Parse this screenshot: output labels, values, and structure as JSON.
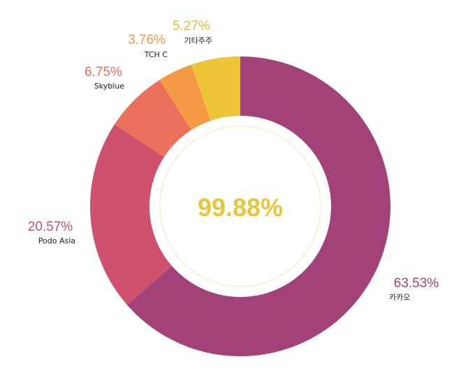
{
  "chart_data": {
    "type": "pie",
    "variant": "donut",
    "start": "top",
    "direction": "clockwise",
    "center_text": "99.88%",
    "center_color": "#e9c53a",
    "slices": [
      {
        "label": "카카오",
        "value": 63.53,
        "value_text": "63.53%",
        "color": "#a34278",
        "label_color": "#a34278"
      },
      {
        "label": "Podo Asia",
        "value": 20.57,
        "value_text": "20.57%",
        "color": "#cf516d",
        "label_color": "#cf516d"
      },
      {
        "label": "Skyblue",
        "value": 6.75,
        "value_text": "6.75%",
        "color": "#eb705c",
        "label_color": "#eb705c"
      },
      {
        "label": "TCH C",
        "value": 3.76,
        "value_text": "3.76%",
        "color": "#f49a44",
        "label_color": "#f49a44"
      },
      {
        "label": "기타주주",
        "value": 5.27,
        "value_text": "5.27%",
        "color": "#edc536",
        "label_color": "#e9bd33"
      }
    ]
  }
}
